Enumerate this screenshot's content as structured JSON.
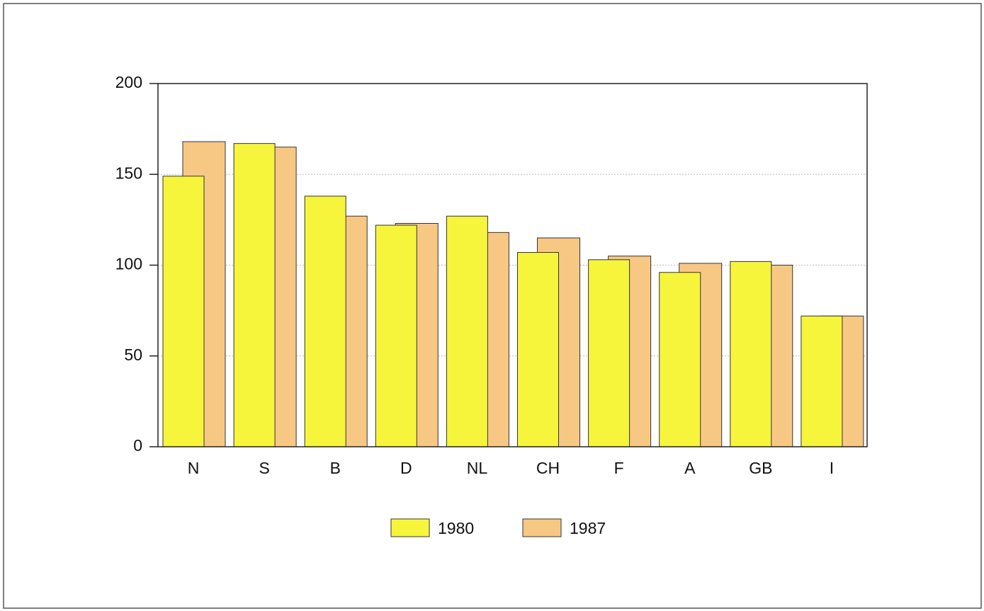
{
  "chart_data": {
    "type": "bar",
    "categories": [
      "N",
      "S",
      "B",
      "D",
      "NL",
      "CH",
      "F",
      "A",
      "GB",
      "I"
    ],
    "series": [
      {
        "name": "1980",
        "color": "#f6f53c",
        "values": [
          149,
          167,
          138,
          122,
          127,
          107,
          103,
          96,
          102,
          72
        ]
      },
      {
        "name": "1987",
        "color": "#f7c884",
        "values": [
          168,
          165,
          127,
          123,
          118,
          115,
          105,
          101,
          100,
          72
        ]
      }
    ],
    "ylim": [
      0,
      200
    ],
    "yticks": [
      0,
      50,
      100,
      150,
      200
    ],
    "grid": true,
    "legend": "bottom"
  }
}
